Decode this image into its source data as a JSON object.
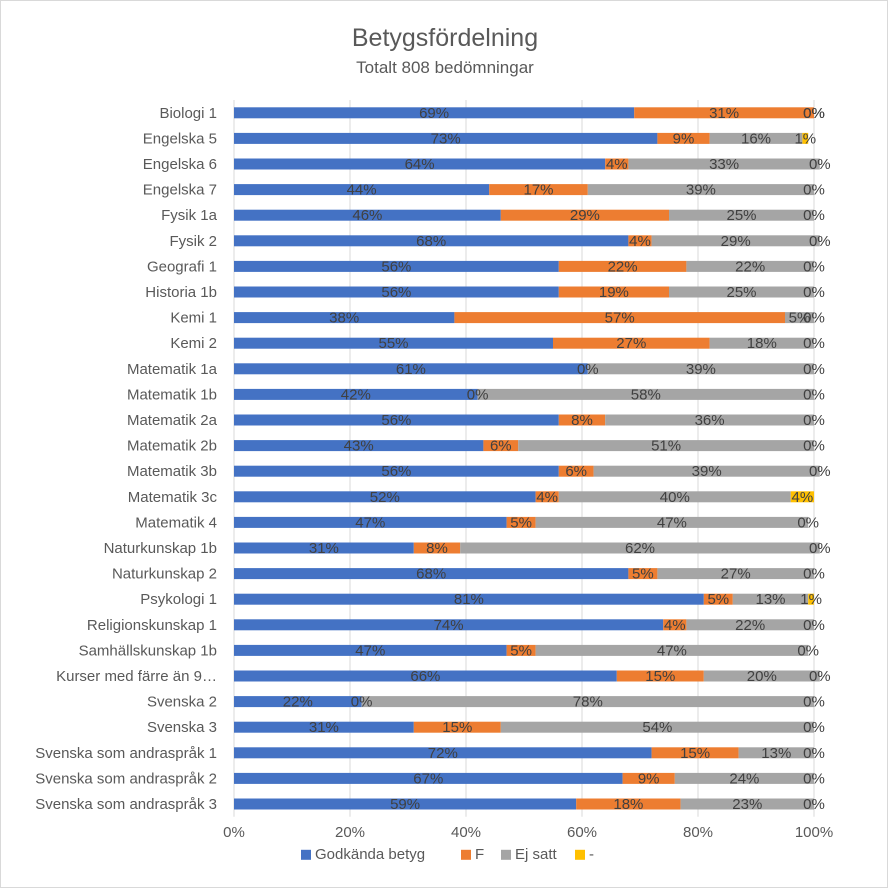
{
  "chart_data": {
    "type": "bar",
    "orientation": "horizontal",
    "stacked": "percent",
    "title": "Betygsfördelning",
    "subtitle": "Totalt 808 bedömningar",
    "xlim": [
      0,
      100
    ],
    "x_ticks": [
      "0%",
      "20%",
      "40%",
      "60%",
      "80%",
      "100%"
    ],
    "grid": true,
    "legend_position": "bottom",
    "categories": [
      "Biologi 1",
      "Engelska 5",
      "Engelska 6",
      "Engelska 7",
      "Fysik 1a",
      "Fysik 2",
      "Geografi 1",
      "Historia 1b",
      "Kemi 1",
      "Kemi 2",
      "Matematik 1a",
      "Matematik 1b",
      "Matematik 2a",
      "Matematik 2b",
      "Matematik 3b",
      "Matematik 3c",
      "Matematik 4",
      "Naturkunskap 1b",
      "Naturkunskap 2",
      "Psykologi 1",
      "Religionskunskap 1",
      "Samhällskunskap 1b",
      "Kurser med färre än 9…",
      "Svenska 2",
      "Svenska 3",
      "Svenska som andraspråk 1",
      "Svenska som andraspråk 2",
      "Svenska som andraspråk 3"
    ],
    "series": [
      {
        "name": "Godkända betyg",
        "color": "#4472c4",
        "values": [
          69,
          73,
          64,
          44,
          46,
          68,
          56,
          56,
          38,
          55,
          61,
          42,
          56,
          43,
          56,
          52,
          47,
          31,
          68,
          81,
          74,
          47,
          66,
          22,
          31,
          72,
          67,
          59
        ]
      },
      {
        "name": "F",
        "color": "#ed7d31",
        "values": [
          31,
          9,
          4,
          17,
          29,
          4,
          22,
          19,
          57,
          27,
          0,
          0,
          8,
          6,
          6,
          4,
          5,
          8,
          5,
          5,
          4,
          5,
          15,
          0,
          15,
          15,
          9,
          18
        ]
      },
      {
        "name": "Ej satt",
        "color": "#a5a5a5",
        "values": [
          0,
          16,
          33,
          39,
          25,
          29,
          22,
          25,
          5,
          18,
          39,
          58,
          36,
          51,
          39,
          40,
          47,
          62,
          27,
          13,
          22,
          47,
          20,
          78,
          54,
          13,
          24,
          23
        ]
      },
      {
        "name": "-",
        "color": "#ffc000",
        "values": [
          0,
          1,
          0,
          0,
          0,
          0,
          0,
          0,
          0,
          0,
          0,
          0,
          0,
          0,
          0,
          4,
          0,
          0,
          0,
          1,
          0,
          0,
          0,
          0,
          0,
          0,
          0,
          0
        ]
      }
    ]
  }
}
